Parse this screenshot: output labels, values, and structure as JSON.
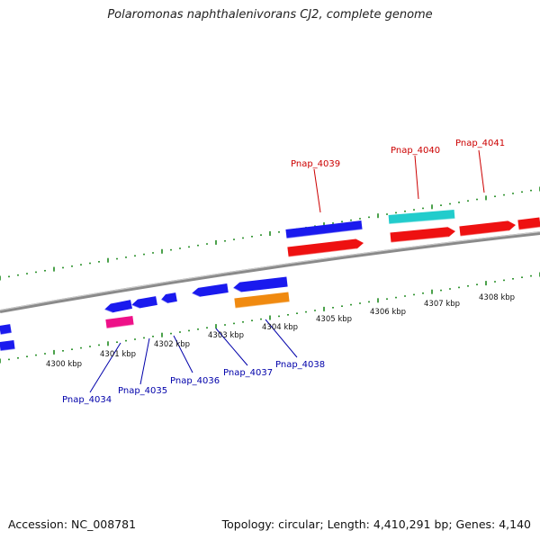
{
  "header": {
    "title": "Polaromonas naphthalenivorans CJ2, complete genome"
  },
  "footer": {
    "accession": "Accession: NC_008781",
    "info": "Topology: circular; Length: 4,410,291 bp; Genes: 4,140"
  },
  "colors": {
    "forward_gene": "#1a1aee",
    "reverse_gene": "#ee1111",
    "rna_gene": "#ee1188",
    "orange_gene": "#f08a10",
    "cyan_gene": "#22cccc",
    "backbone": "#8a8a8a",
    "tick": "#1f8a1f",
    "label_forward": "#0000aa",
    "label_reverse": "#cc0000"
  },
  "scale_labels": [
    "4300 kbp",
    "4301 kbp",
    "4302 kbp",
    "4303 kbp",
    "4304 kbp",
    "4305 kbp",
    "4306 kbp",
    "4307 kbp",
    "4308 kbp"
  ],
  "gene_labels_top": [
    "Pnap_4039",
    "Pnap_4040",
    "Pnap_4041"
  ],
  "gene_labels_bottom": [
    "Pnap_4034",
    "Pnap_4035",
    "Pnap_4036",
    "Pnap_4037",
    "Pnap_4038"
  ]
}
